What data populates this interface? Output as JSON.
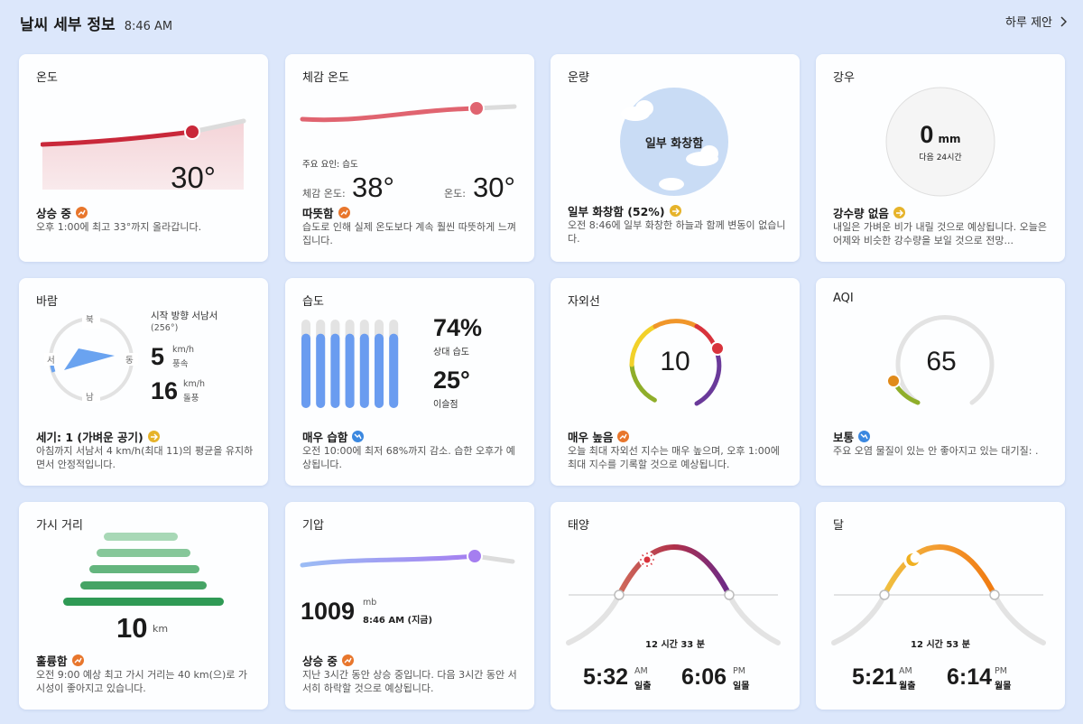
{
  "header": {
    "title": "날씨 세부 정보",
    "time": "8:46 AM",
    "day_link": "하루 제안"
  },
  "temperature": {
    "title": "온도",
    "value": "30°",
    "status": "상승 중",
    "desc": "오후 1:00에 최고 33°까지 올라갑니다."
  },
  "feels_like": {
    "title": "체감 온도",
    "factor": "주요 요인: 습도",
    "feels_label": "체감 온도:",
    "feels_value": "38°",
    "temp_label": "온도:",
    "temp_value": "30°",
    "status": "따뜻함",
    "desc": "습도로 인해 실제 온도보다 계속 훨씬 따뜻하게 느껴집니다."
  },
  "cloud": {
    "title": "운량",
    "circle_label": "일부 화창함",
    "status": "일부 화창함 (52%)",
    "desc": "오전 8:46에 일부 화창한 하늘과 함께 변동이 없습니다."
  },
  "rain": {
    "title": "강우",
    "amount": "0",
    "unit": "mm",
    "period": "다음 24시간",
    "status": "강수량 없음",
    "desc": "내일은 가벼운 비가 내릴 것으로 예상됩니다. 오늘은 어제와 비슷한 강수량을 보일 것으로 전망..."
  },
  "wind": {
    "title": "바람",
    "north": "북",
    "south": "남",
    "west": "서",
    "east": "동",
    "direction": "시작 방향 서남서",
    "degrees": "(256°)",
    "speed": "5",
    "speed_unit": "km/h",
    "speed_label": "풍속",
    "gust": "16",
    "gust_unit": "km/h",
    "gust_label": "돌풍",
    "status": "세기: 1 (가벼운 공기)",
    "desc": "아침까지 서남서 4 km/h(최대 11)의 평균을 유지하면서 안정적입니다."
  },
  "humidity": {
    "title": "습도",
    "value": "74%",
    "value_label": "상대 습도",
    "dew": "25°",
    "dew_label": "이슬점",
    "status": "매우 습함",
    "desc": "오전 10:00에 최저 68%까지 감소. 습한 오후가 예상됩니다.",
    "bar_levels": [
      0.84,
      0.84,
      0.84,
      0.84,
      0.84,
      0.84,
      0.84
    ]
  },
  "uv": {
    "title": "자외선",
    "value": "10",
    "status": "매우 높음",
    "desc": "오늘 최대 자외선 지수는 매우 높으며, 오후 1:00에 최대 지수를 기록할 것으로 예상됩니다."
  },
  "aqi": {
    "title": "AQI",
    "value": "65",
    "status": "보통",
    "desc": "주요 오염 물질이 있는 안 좋아지고 있는 대기질: ."
  },
  "visibility": {
    "title": "가시 거리",
    "value": "10",
    "unit": "km",
    "status": "훌륭함",
    "desc": "오전 9:00 예상 최고 가시 거리는 40 km(으)로 가시성이 좋아지고 있습니다."
  },
  "pressure": {
    "title": "기압",
    "value": "1009",
    "unit": "mb",
    "time": "8:46 AM (지금)",
    "status": "상승 중",
    "desc": "지난 3시간 동안 상승 중입니다. 다음 3시간 동안 서서히 하락할 것으로 예상됩니다."
  },
  "sun": {
    "title": "태양",
    "duration": "12 시간 33 분",
    "rise_time": "5:32",
    "rise_ampm": "AM",
    "rise_label": "일출",
    "set_time": "6:06",
    "set_ampm": "PM",
    "set_label": "일몰"
  },
  "moon": {
    "title": "달",
    "duration": "12 시간 53 분",
    "rise_time": "5:21",
    "rise_ampm": "AM",
    "rise_label": "월출",
    "set_time": "6:14",
    "set_ampm": "PM",
    "set_label": "월몰"
  },
  "colors": {
    "bg": "#dce7fb",
    "temp": "#c9283a",
    "feels": "#e06470",
    "humidity": "#6a9cf0",
    "pressure": "#9b83f0",
    "visibility": "#2f9a55",
    "up_badge": "#e8762c",
    "down_badge": "#3b88e0",
    "flat_badge": "#e6b32a"
  }
}
